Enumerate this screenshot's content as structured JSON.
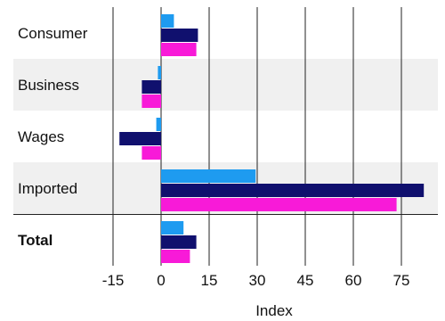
{
  "chart_data": {
    "type": "bar",
    "orientation": "horizontal",
    "categories": [
      "Consumer",
      "Business",
      "Wages",
      "Imported",
      "Total"
    ],
    "emphasized_categories": [
      "Total"
    ],
    "banded_categories": [
      "Business",
      "Imported"
    ],
    "series": [
      {
        "color": "#1e9bf0",
        "values": [
          4,
          -1,
          -1.5,
          29.5,
          7
        ]
      },
      {
        "color": "#10106e",
        "values": [
          11.5,
          -6,
          -13,
          82,
          11
        ]
      },
      {
        "color": "#f81ad8",
        "values": [
          11,
          -6,
          -6,
          73.5,
          9
        ]
      }
    ],
    "xlabel": "Index",
    "xlim": [
      -30,
      85
    ],
    "xticks": [
      -15,
      0,
      15,
      30,
      45,
      60,
      75
    ],
    "xtick_labels": [
      "-15",
      "0",
      "15",
      "30",
      "45",
      "60",
      "75"
    ],
    "grid": "vertical",
    "band_color": "#f0f0f0"
  }
}
